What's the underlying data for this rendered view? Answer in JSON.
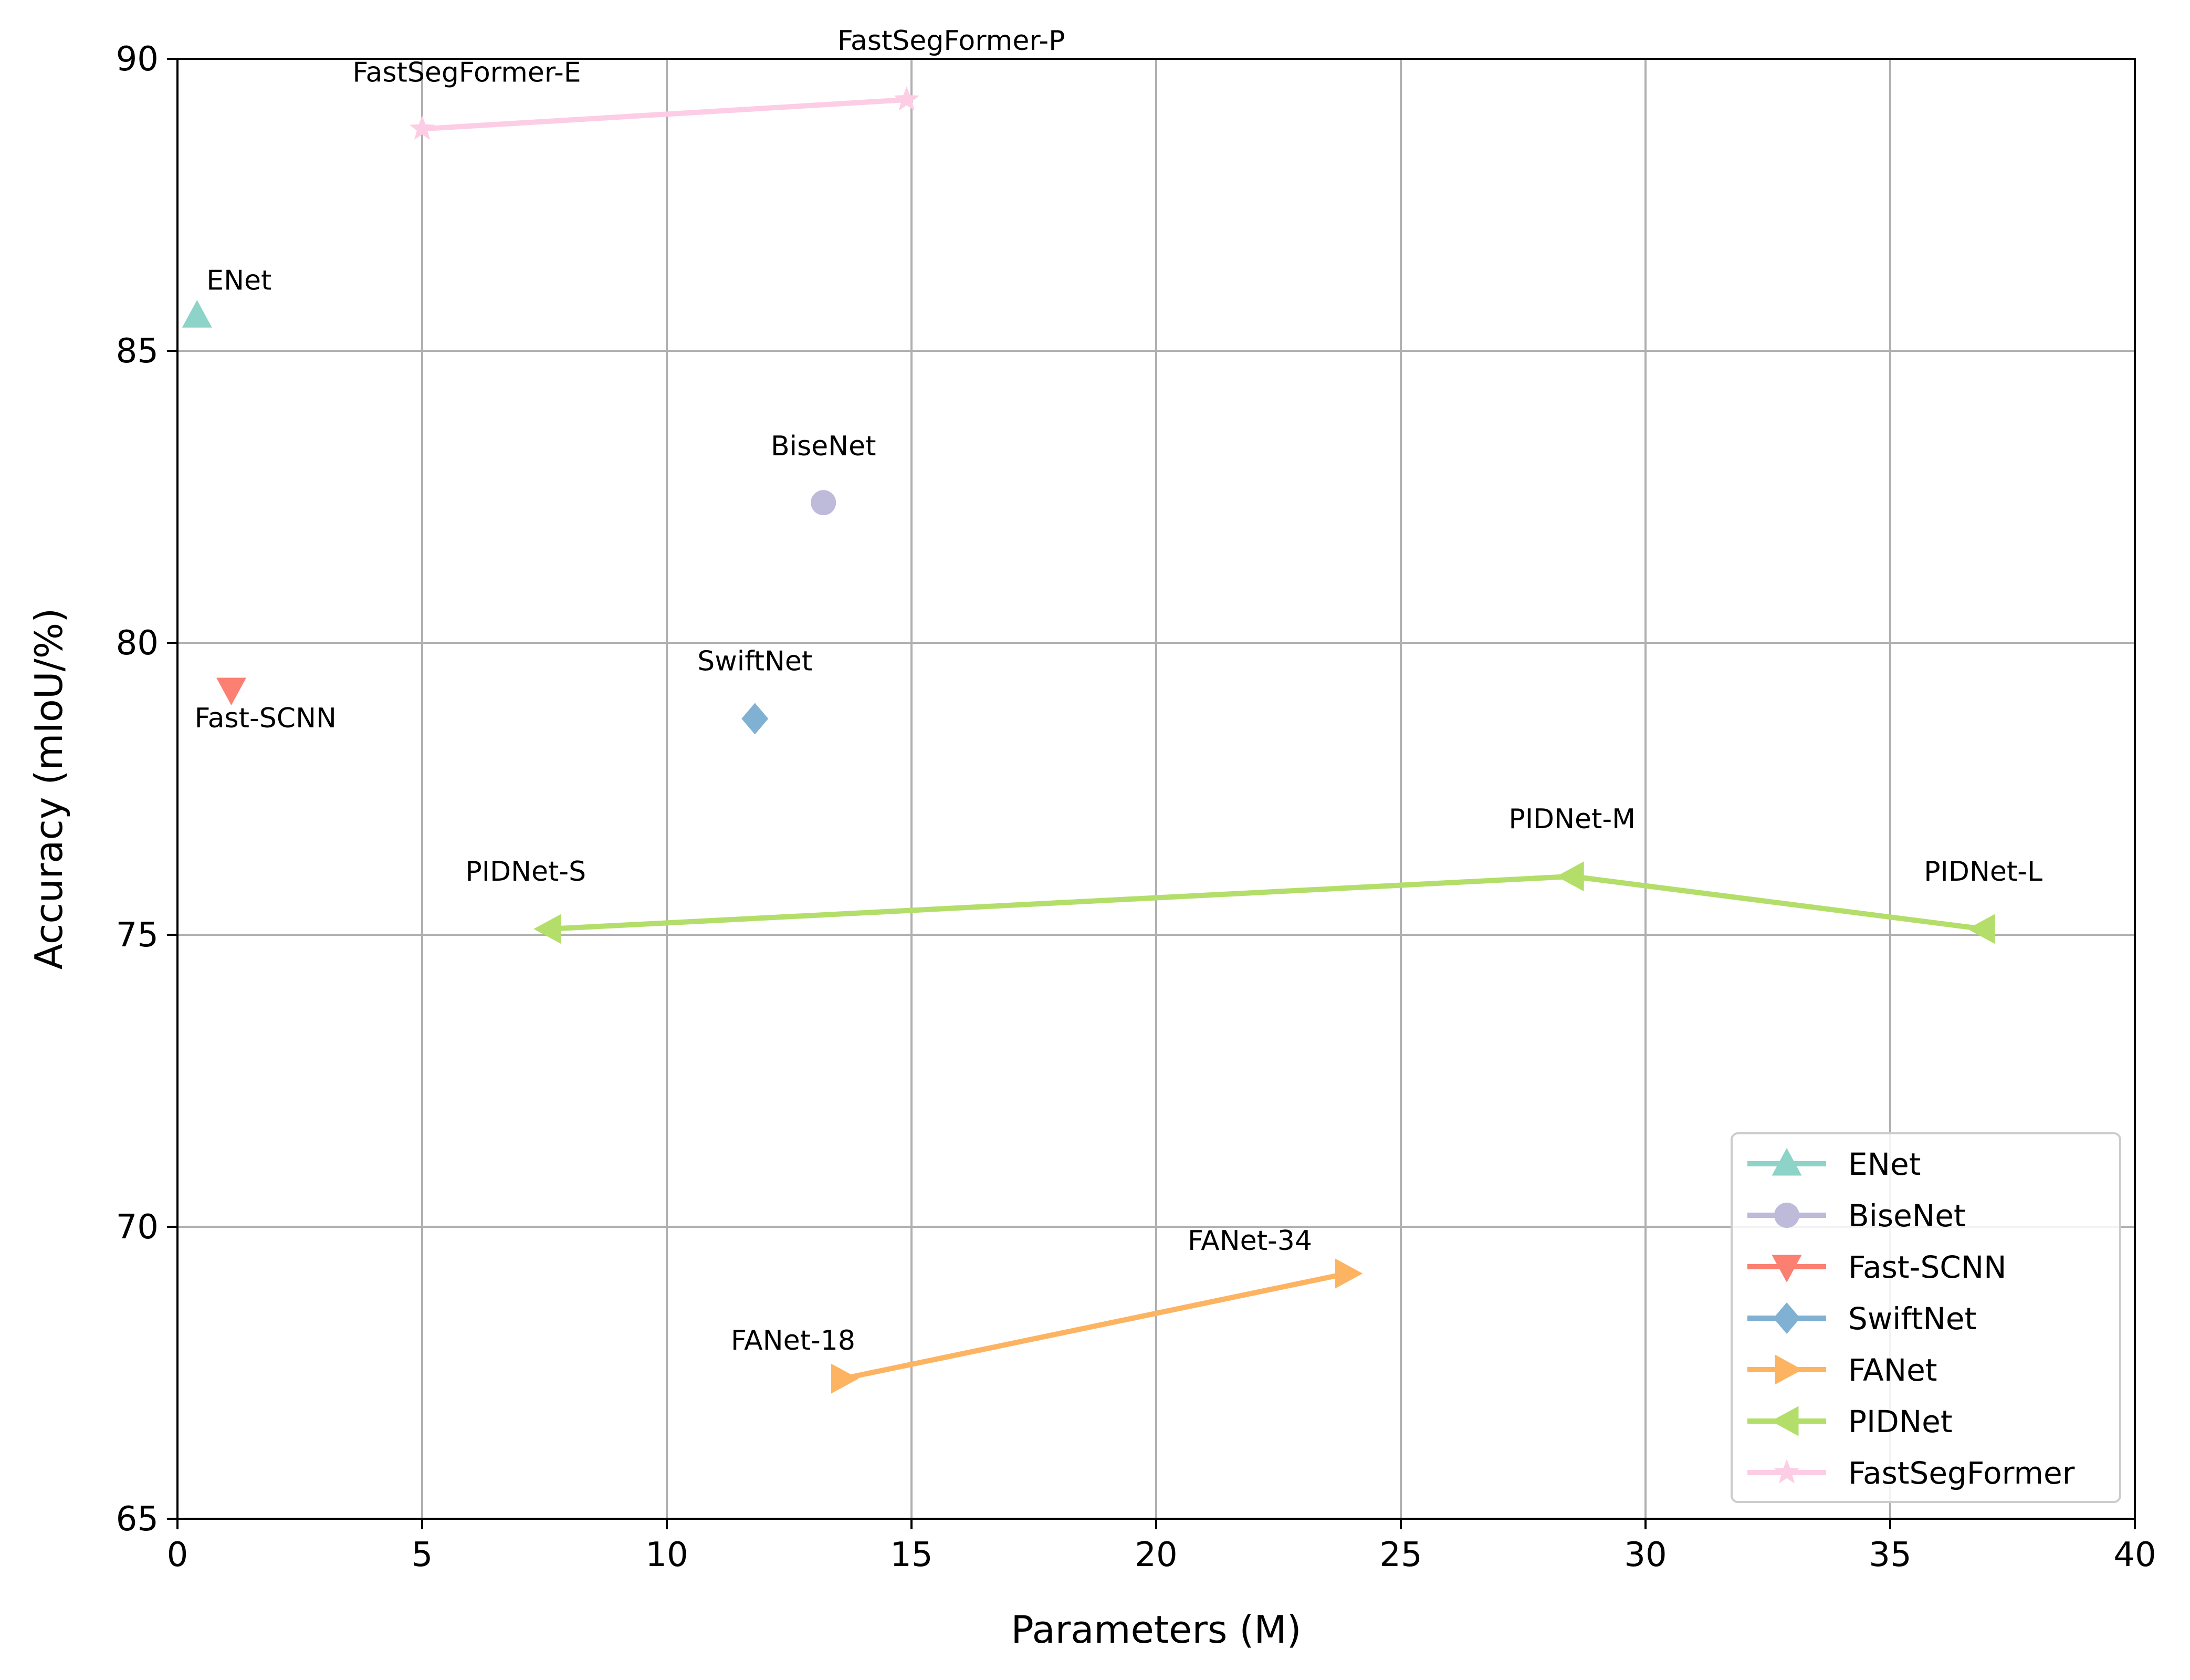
{
  "chart_data": {
    "type": "scatter",
    "xlabel": "Parameters (M)",
    "ylabel": "Accuracy (mIoU/%)",
    "xlim": [
      0,
      40
    ],
    "ylim": [
      65,
      90
    ],
    "xticks": [
      0,
      5,
      10,
      15,
      20,
      25,
      30,
      35,
      40
    ],
    "yticks": [
      65,
      70,
      75,
      80,
      85,
      90
    ],
    "grid": true,
    "legend_position": "lower-right",
    "series": [
      {
        "name": "ENet",
        "color": "#8dd3c7",
        "marker": "triangle-up",
        "points": [
          {
            "x": 0.4,
            "y": 85.6,
            "label": "ENet"
          }
        ]
      },
      {
        "name": "BiseNet",
        "color": "#bebada",
        "marker": "circle",
        "points": [
          {
            "x": 13.2,
            "y": 82.4,
            "label": "BiseNet"
          }
        ]
      },
      {
        "name": "Fast-SCNN",
        "color": "#fb8072",
        "marker": "triangle-down",
        "points": [
          {
            "x": 1.1,
            "y": 79.2,
            "label": "Fast-SCNN"
          }
        ]
      },
      {
        "name": "SwiftNet",
        "color": "#80b1d3",
        "marker": "diamond",
        "points": [
          {
            "x": 11.8,
            "y": 78.7,
            "label": "SwiftNet"
          }
        ]
      },
      {
        "name": "FANet",
        "color": "#fdb462",
        "marker": "triangle-right",
        "points": [
          {
            "x": 13.6,
            "y": 67.4,
            "label": "FANet-18"
          },
          {
            "x": 23.9,
            "y": 69.2,
            "label": "FANet-34"
          }
        ]
      },
      {
        "name": "PIDNet",
        "color": "#b3de69",
        "marker": "triangle-left",
        "points": [
          {
            "x": 7.6,
            "y": 75.1,
            "label": "PIDNet-S"
          },
          {
            "x": 28.5,
            "y": 76.0,
            "label": "PIDNet-M"
          },
          {
            "x": 36.9,
            "y": 75.1,
            "label": "PIDNet-L"
          }
        ]
      },
      {
        "name": "FastSegFormer",
        "color": "#fccde5",
        "marker": "star",
        "points": [
          {
            "x": 5.0,
            "y": 88.8,
            "label": "FastSegFormer-E"
          },
          {
            "x": 14.9,
            "y": 89.3,
            "label": "FastSegFormer-P"
          }
        ]
      }
    ]
  }
}
